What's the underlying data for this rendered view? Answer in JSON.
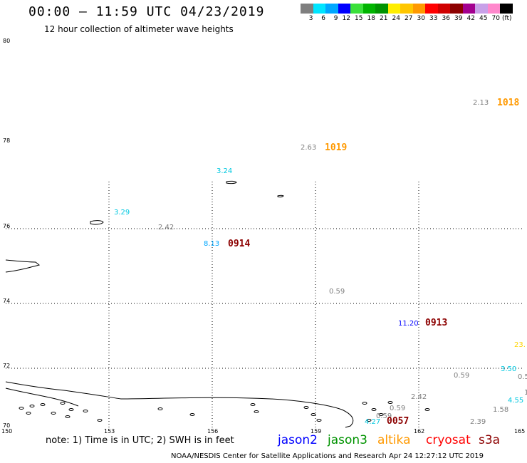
{
  "header": {
    "title": "00:00 — 11:59 UTC 04/23/2019",
    "subtitle": "12 hour collection of altimeter wave heights"
  },
  "colorbar": {
    "colors": [
      "#7f7f7f",
      "#00e5ff",
      "#00a7ff",
      "#0000ff",
      "#3ae03a",
      "#00b400",
      "#009300",
      "#ffee00",
      "#ffc600",
      "#ff9900",
      "#ff0000",
      "#d00000",
      "#8c0000",
      "#a3008f",
      "#c8a0e8",
      "#ff88cc",
      "#000000"
    ],
    "labels": [
      "3",
      "6",
      "9",
      "12",
      "15",
      "18",
      "21",
      "24",
      "27",
      "30",
      "33",
      "36",
      "39",
      "42",
      "45",
      "70",
      "(ft)"
    ]
  },
  "axes": {
    "lat_labels": [
      "80",
      "78",
      "76",
      "74",
      "72",
      "70"
    ],
    "lon_labels": [
      "150",
      "153",
      "156",
      "159",
      "162",
      "165"
    ]
  },
  "observations": [
    {
      "text": "2.13",
      "color": "#7f7f7f"
    },
    {
      "text": "2.63",
      "color": "#7f7f7f"
    },
    {
      "text": "3.24",
      "color": "#00c8e0"
    },
    {
      "text": "3.29",
      "color": "#00c8e0"
    },
    {
      "text": "2.42",
      "color": "#7f7f7f"
    },
    {
      "text": "8.13",
      "color": "#00a7ff"
    },
    {
      "text": "0.59",
      "color": "#7f7f7f"
    },
    {
      "text": "11.20",
      "color": "#0000ff"
    },
    {
      "text": "23.",
      "color": "#ffd400"
    },
    {
      "text": "0.59",
      "color": "#7f7f7f"
    },
    {
      "text": "3.50",
      "color": "#00c8e0"
    },
    {
      "text": "0.5",
      "color": "#7f7f7f"
    },
    {
      "text": "4.55",
      "color": "#00c8e0"
    },
    {
      "text": "1",
      "color": "#7f7f7f"
    },
    {
      "text": "2.42",
      "color": "#7f7f7f"
    },
    {
      "text": "0.59",
      "color": "#7f7f7f"
    },
    {
      "text": "1.58",
      "color": "#7f7f7f"
    },
    {
      "text": "0.59",
      "color": "#7f7f7f"
    },
    {
      "text": "4.27",
      "color": "#00c8e0"
    },
    {
      "text": "2.39",
      "color": "#7f7f7f"
    }
  ],
  "pass_times": [
    {
      "text": "1018",
      "color": "#ff9900"
    },
    {
      "text": "1019",
      "color": "#ff9900"
    },
    {
      "text": "0914",
      "color": "#8c0000"
    },
    {
      "text": "0913",
      "color": "#8c0000"
    },
    {
      "text": "0057",
      "color": "#8c0000"
    }
  ],
  "footer": {
    "note": "note: 1) Time is in UTC; 2) SWH is in feet",
    "satellites": [
      {
        "name": "jason2",
        "color": "#0000ff"
      },
      {
        "name": "jason3",
        "color": "#009300"
      },
      {
        "name": "altika",
        "color": "#ff9900"
      },
      {
        "name": "cryosat",
        "color": "#ff0000"
      },
      {
        "name": "s3a",
        "color": "#8c0000"
      }
    ],
    "credit": "NOAA/NESDIS Center for Satellite Applications and Research    Apr 24 12:27:12 UTC 2019"
  }
}
